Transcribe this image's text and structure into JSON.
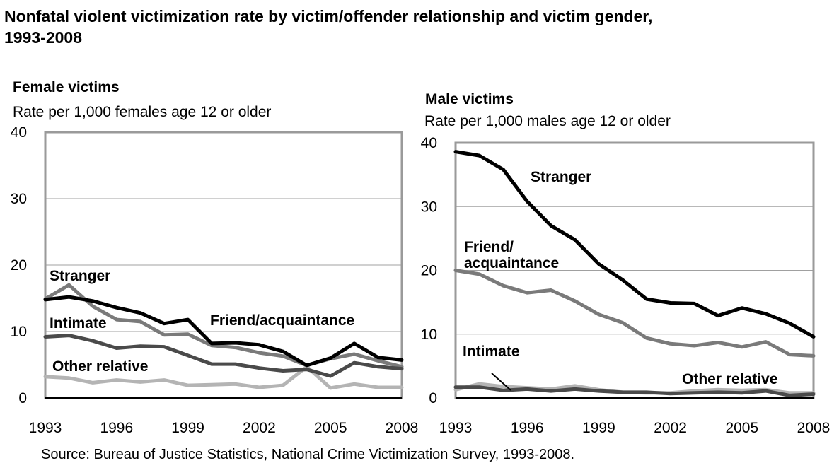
{
  "title_line1": "Nonfatal violent victimization rate by victim/offender relationship and victim gender,",
  "title_line2": "1993-2008",
  "source": "Source: Bureau of Justice Statistics, National Crime Victimization Survey, 1993-2008.",
  "colors": {
    "stranger": "#000000",
    "intimate": "#4a4a4a",
    "friend_acquaintance": "#7a7a7a",
    "other_relative": "#b4b4b4",
    "grid": "#a0a0a0",
    "frame": "#9a9a9a"
  },
  "chart_data": [
    {
      "type": "line",
      "title": "Female victims",
      "ylabel": "Rate per 1,000 females age 12 or older",
      "ylim": [
        0,
        40
      ],
      "yticks": [
        0,
        10,
        20,
        30,
        40
      ],
      "xlim": [
        1993,
        2008
      ],
      "xticks": [
        1993,
        1996,
        1999,
        2002,
        2005,
        2008
      ],
      "grid": true,
      "x": [
        1993,
        1994,
        1995,
        1996,
        1997,
        1998,
        1999,
        2000,
        2001,
        2002,
        2003,
        2004,
        2005,
        2006,
        2007,
        2008
      ],
      "series": [
        {
          "name": "Stranger",
          "color_key": "stranger",
          "values": [
            14.8,
            15.2,
            14.6,
            13.6,
            12.8,
            11.2,
            11.8,
            8.2,
            8.3,
            8.0,
            7.0,
            4.9,
            6.0,
            8.2,
            6.1,
            5.7
          ]
        },
        {
          "name": "Friend/acquaintance",
          "color_key": "friend_acquaintance",
          "values": [
            14.9,
            17.0,
            13.8,
            11.8,
            11.5,
            9.5,
            9.6,
            7.9,
            7.6,
            6.8,
            6.3,
            4.9,
            5.9,
            6.6,
            5.6,
            4.7
          ]
        },
        {
          "name": "Intimate",
          "color_key": "intimate",
          "values": [
            9.2,
            9.4,
            8.6,
            7.5,
            7.8,
            7.7,
            6.4,
            5.1,
            5.1,
            4.5,
            4.1,
            4.3,
            3.3,
            5.3,
            4.7,
            4.4
          ]
        },
        {
          "name": "Other relative",
          "color_key": "other_relative",
          "values": [
            3.2,
            3.0,
            2.3,
            2.7,
            2.4,
            2.7,
            1.9,
            2.0,
            2.1,
            1.6,
            1.9,
            4.7,
            1.5,
            2.1,
            1.6,
            1.6
          ]
        }
      ],
      "labels": [
        {
          "series": "Stranger",
          "text": "Stranger"
        },
        {
          "series": "Intimate",
          "text": "Intimate"
        },
        {
          "series": "Other relative",
          "text": "Other relative"
        },
        {
          "series": "Friend/acquaintance",
          "text": "Friend/acquaintance"
        }
      ]
    },
    {
      "type": "line",
      "title": "Male victims",
      "ylabel": "Rate per 1,000 males age 12 or older",
      "ylim": [
        0,
        40
      ],
      "yticks": [
        0,
        10,
        20,
        30,
        40
      ],
      "xlim": [
        1993,
        2008
      ],
      "xticks": [
        1993,
        1996,
        1999,
        2002,
        2005,
        2008
      ],
      "grid": true,
      "x": [
        1993,
        1994,
        1995,
        1996,
        1997,
        1998,
        1999,
        2000,
        2001,
        2002,
        2003,
        2004,
        2005,
        2006,
        2007,
        2008
      ],
      "series": [
        {
          "name": "Stranger",
          "color_key": "stranger",
          "values": [
            38.6,
            38.0,
            35.8,
            30.8,
            27.0,
            24.8,
            21.0,
            18.5,
            15.5,
            14.9,
            14.8,
            12.9,
            14.1,
            13.2,
            11.7,
            9.6
          ]
        },
        {
          "name": "Friend/acquaintance",
          "color_key": "friend_acquaintance",
          "values": [
            20.0,
            19.4,
            17.6,
            16.5,
            16.9,
            15.2,
            13.1,
            11.8,
            9.4,
            8.5,
            8.2,
            8.7,
            8.0,
            8.8,
            6.8,
            6.6
          ]
        },
        {
          "name": "Intimate",
          "color_key": "intimate",
          "values": [
            1.7,
            1.7,
            1.2,
            1.4,
            1.1,
            1.4,
            1.1,
            0.9,
            0.9,
            0.7,
            0.8,
            0.9,
            0.8,
            1.1,
            0.4,
            0.6
          ]
        },
        {
          "name": "Other relative",
          "color_key": "other_relative",
          "values": [
            1.3,
            2.2,
            1.8,
            1.6,
            1.4,
            1.9,
            1.3,
            0.9,
            0.8,
            0.8,
            1.1,
            1.3,
            1.2,
            1.3,
            0.8,
            0.8
          ]
        }
      ],
      "labels": [
        {
          "series": "Stranger",
          "text": "Stranger"
        },
        {
          "series": "Friend/acquaintance",
          "text": "Friend/\nacquaintance"
        },
        {
          "series": "Intimate",
          "text": "Intimate"
        },
        {
          "series": "Other relative",
          "text": "Other relative"
        }
      ]
    }
  ]
}
